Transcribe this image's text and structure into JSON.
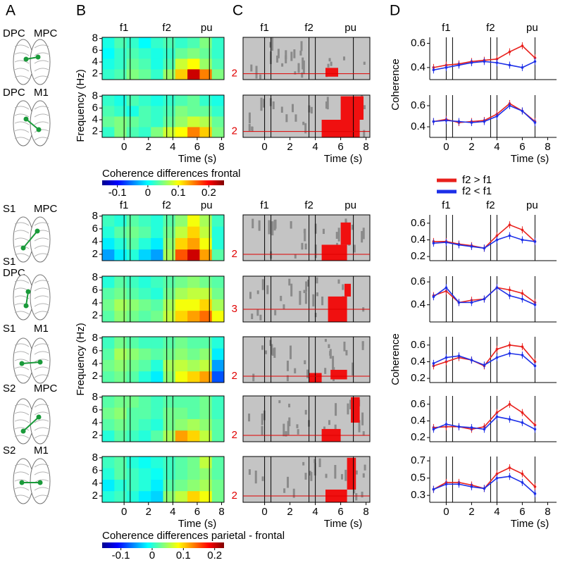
{
  "panel_labels": [
    "A",
    "B",
    "C",
    "D"
  ],
  "event_times": [
    0,
    0.5,
    3.5,
    4,
    7
  ],
  "regions": [
    [
      "DPC",
      "MPC"
    ],
    [
      "DPC",
      "M1"
    ],
    [
      "S1",
      "MPC"
    ],
    [
      "S1",
      "DPC"
    ],
    [
      "S1",
      "M1"
    ],
    [
      "S2",
      "MPC"
    ],
    [
      "S2",
      "M1"
    ]
  ],
  "chart_data": [
    {
      "type": "heatmap",
      "event_labels": [
        "f1",
        "f2",
        "pu"
      ],
      "xlim": [
        -1.8,
        8.2
      ],
      "ylim": [
        1,
        8.2
      ],
      "yticks": [
        2,
        4,
        6,
        8
      ],
      "z": [
        [
          0.02,
          0.03,
          0.05,
          0.04,
          0.02,
          0.06,
          0.12,
          0.22,
          0.15,
          0.05
        ],
        [
          0.01,
          0.02,
          0.04,
          0.03,
          0.01,
          0.03,
          0.08,
          0.1,
          0.06,
          0.03
        ],
        [
          0.0,
          0.02,
          0.03,
          0.02,
          0.01,
          0.02,
          0.04,
          0.05,
          0.04,
          0.02
        ],
        [
          0.01,
          0.03,
          0.02,
          0.0,
          0.02,
          0.03,
          0.02,
          0.03,
          0.05,
          0.02
        ]
      ]
    },
    {
      "type": "heatmap",
      "xlabel": "Time (s)",
      "ylabel": "Frequency (Hz)",
      "xlim": [
        -1.8,
        8.2
      ],
      "xticks": [
        0,
        2,
        4,
        6,
        8
      ],
      "ylim": [
        1,
        8.2
      ],
      "yticks": [
        2,
        4,
        6,
        8
      ],
      "z": [
        [
          0.02,
          0.05,
          0.03,
          0.02,
          0.05,
          0.08,
          0.1,
          0.15,
          0.12,
          0.05
        ],
        [
          0.04,
          0.05,
          0.04,
          0.03,
          0.02,
          0.04,
          0.06,
          0.08,
          0.07,
          0.04
        ],
        [
          0.03,
          0.02,
          0.01,
          0.03,
          0.02,
          0.03,
          0.05,
          0.04,
          0.04,
          0.02
        ],
        [
          0.02,
          0.01,
          0.03,
          0.02,
          0.01,
          0.02,
          0.03,
          0.04,
          0.02,
          0.01
        ]
      ]
    },
    {
      "type": "colorbar",
      "title": "Coherence differences frontal",
      "lim": [
        -0.15,
        0.25
      ],
      "ticks": [
        -0.1,
        0,
        0.1,
        0.2
      ]
    },
    {
      "type": "heatmap",
      "event_labels": [
        "f1",
        "f2",
        "pu"
      ],
      "xlim": [
        -1.8,
        8.2
      ],
      "ylim": [
        1,
        8.2
      ],
      "yticks": [
        2,
        4,
        6,
        8
      ],
      "z": [
        [
          -0.05,
          -0.02,
          0.0,
          -0.03,
          -0.05,
          0.05,
          0.15,
          0.2,
          0.12,
          0.02
        ],
        [
          -0.02,
          0.0,
          0.02,
          0.0,
          -0.02,
          0.04,
          0.1,
          0.12,
          0.08,
          0.0
        ],
        [
          0.0,
          0.02,
          0.03,
          0.02,
          0.0,
          0.03,
          0.06,
          0.1,
          0.06,
          0.0
        ],
        [
          0.01,
          0.0,
          0.02,
          0.01,
          0.0,
          0.02,
          0.04,
          0.08,
          0.05,
          0.01
        ]
      ]
    },
    {
      "type": "heatmap",
      "xlim": [
        -1.8,
        8.2
      ],
      "ylim": [
        1,
        8.2
      ],
      "yticks": [
        2,
        4,
        6,
        8
      ],
      "z": [
        [
          0.02,
          0.04,
          0.03,
          0.02,
          0.03,
          0.06,
          0.1,
          0.12,
          0.14,
          0.08
        ],
        [
          0.03,
          0.05,
          0.04,
          0.03,
          0.02,
          0.05,
          0.08,
          0.08,
          0.1,
          0.05
        ],
        [
          0.02,
          0.03,
          0.02,
          0.01,
          0.0,
          0.03,
          0.05,
          0.06,
          0.06,
          0.03
        ],
        [
          0.0,
          0.02,
          0.01,
          0.0,
          0.01,
          0.02,
          0.03,
          0.04,
          0.03,
          0.02
        ]
      ]
    },
    {
      "type": "heatmap",
      "ylabel": "Frequency (Hz)",
      "xlim": [
        -1.8,
        8.2
      ],
      "ylim": [
        1,
        8.2
      ],
      "yticks": [
        2,
        4,
        6,
        8
      ],
      "z": [
        [
          0.02,
          0.03,
          0.02,
          0.0,
          -0.02,
          0.04,
          0.08,
          0.1,
          0.12,
          -0.08
        ],
        [
          0.03,
          0.04,
          0.03,
          0.02,
          0.0,
          0.05,
          0.06,
          0.05,
          0.06,
          -0.05
        ],
        [
          0.02,
          0.05,
          0.04,
          0.03,
          0.02,
          0.03,
          0.04,
          0.03,
          0.04,
          -0.02
        ],
        [
          0.01,
          0.03,
          0.02,
          0.01,
          0.01,
          0.02,
          0.03,
          0.02,
          0.02,
          0.0
        ]
      ]
    },
    {
      "type": "heatmap",
      "xlim": [
        -1.8,
        8.2
      ],
      "ylim": [
        1,
        8.2
      ],
      "yticks": [
        2,
        4,
        6,
        8
      ],
      "z": [
        [
          0.0,
          0.02,
          0.01,
          0.0,
          0.02,
          0.05,
          0.12,
          0.1,
          0.06,
          0.02
        ],
        [
          0.02,
          0.03,
          0.02,
          0.01,
          0.0,
          0.03,
          0.04,
          0.05,
          0.04,
          0.02
        ],
        [
          0.03,
          0.04,
          0.02,
          0.02,
          0.01,
          0.03,
          0.03,
          0.02,
          0.03,
          0.01
        ],
        [
          0.02,
          0.03,
          0.03,
          0.02,
          0.01,
          0.02,
          0.02,
          0.02,
          0.03,
          0.01
        ]
      ]
    },
    {
      "type": "heatmap",
      "xlabel": "Time (s)",
      "xlim": [
        -1.8,
        8.2
      ],
      "xticks": [
        0,
        2,
        4,
        6,
        8
      ],
      "ylim": [
        1,
        8.2
      ],
      "yticks": [
        2,
        4,
        6,
        8
      ],
      "z": [
        [
          0.0,
          0.01,
          0.0,
          -0.02,
          -0.03,
          0.04,
          0.06,
          0.1,
          0.08,
          0.03
        ],
        [
          -0.02,
          0.0,
          0.01,
          0.0,
          -0.02,
          0.02,
          0.03,
          0.04,
          0.05,
          0.03
        ],
        [
          0.0,
          0.02,
          0.01,
          0.0,
          -0.01,
          0.01,
          0.02,
          0.03,
          0.04,
          0.02
        ],
        [
          0.01,
          0.02,
          0.0,
          -0.01,
          0.0,
          0.01,
          0.02,
          0.03,
          0.06,
          0.02
        ]
      ]
    },
    {
      "type": "colorbar",
      "title": "Coherence differences parietal - frontal",
      "lim": [
        -0.16,
        0.23
      ],
      "ticks": [
        -0.1,
        0,
        0.1,
        0.2
      ]
    },
    {
      "type": "raster",
      "event_labels": [
        "f1",
        "f2",
        "pu"
      ],
      "xlim": [
        -1.7,
        8.3
      ],
      "ylim": [
        1,
        8.2
      ],
      "threshold": 2,
      "regions": [
        [
          4.8,
          5.8,
          1.5,
          3
        ]
      ]
    },
    {
      "type": "raster",
      "xlabel": "Time (s)",
      "xlim": [
        -1.7,
        8.3
      ],
      "xticks": [
        0,
        2,
        4,
        6,
        8
      ],
      "ylim": [
        1,
        8.2
      ],
      "threshold": 2,
      "regions": [
        [
          4.5,
          7.5,
          1,
          4
        ],
        [
          6,
          7.8,
          4,
          8
        ]
      ]
    },
    {
      "type": "raster",
      "event_labels": [
        "f1",
        "f2",
        "pu"
      ],
      "xlim": [
        -1.7,
        8.3
      ],
      "ylim": [
        1,
        8.2
      ],
      "threshold": 2,
      "regions": [
        [
          4.5,
          6.5,
          1,
          3.5
        ],
        [
          6,
          6.8,
          3.5,
          7
        ]
      ]
    },
    {
      "type": "raster",
      "xlim": [
        -1.7,
        8.3
      ],
      "ylim": [
        1,
        8.2
      ],
      "threshold": 3,
      "regions": [
        [
          5,
          6.5,
          1,
          5
        ],
        [
          6.3,
          6.8,
          5,
          7
        ]
      ]
    },
    {
      "type": "raster",
      "xlim": [
        -1.7,
        8.3
      ],
      "ylim": [
        1,
        8.2
      ],
      "threshold": 2,
      "regions": [
        [
          3.5,
          4.5,
          1,
          2.5
        ],
        [
          5.2,
          6.5,
          1.5,
          3
        ]
      ]
    },
    {
      "type": "raster",
      "xlim": [
        -1.7,
        8.3
      ],
      "ylim": [
        1,
        8.2
      ],
      "threshold": 2,
      "regions": [
        [
          4.5,
          6,
          1,
          3
        ],
        [
          6.8,
          7.5,
          4,
          8
        ]
      ]
    },
    {
      "type": "raster",
      "xlabel": "Time (s)",
      "xlim": [
        -1.7,
        8.3
      ],
      "xticks": [
        0,
        2,
        4,
        6,
        8
      ],
      "ylim": [
        1,
        8.2
      ],
      "threshold": 2,
      "regions": [
        [
          4.8,
          6.5,
          1,
          3
        ],
        [
          6.5,
          7.2,
          3,
          8
        ]
      ]
    },
    {
      "type": "line",
      "event_labels": [
        "f1",
        "f2",
        "pu"
      ],
      "xlim": [
        -1.3,
        8.7
      ],
      "ylim": [
        0.3,
        0.65
      ],
      "yticks": [
        0.4,
        0.6
      ],
      "x": [
        -1,
        0,
        1,
        2,
        3,
        4,
        5,
        6,
        7
      ],
      "series": [
        {
          "color": "#e8201c",
          "values": [
            0.4,
            0.42,
            0.43,
            0.45,
            0.46,
            0.47,
            0.53,
            0.58,
            0.48
          ]
        },
        {
          "color": "#1c2fe8",
          "values": [
            0.38,
            0.4,
            0.42,
            0.44,
            0.45,
            0.44,
            0.42,
            0.4,
            0.45
          ]
        }
      ]
    },
    {
      "type": "line",
      "xlabel": "Time (s)",
      "ylabel": "Coherence",
      "xlim": [
        -1.3,
        8.7
      ],
      "xticks": [
        0,
        2,
        4,
        6,
        8
      ],
      "ylim": [
        0.3,
        0.7
      ],
      "yticks": [
        0.4,
        0.6
      ],
      "x": [
        -1,
        0,
        1,
        2,
        3,
        4,
        5,
        6,
        7
      ],
      "series": [
        {
          "name": "f2 > f1",
          "color": "#e8201c",
          "values": [
            0.45,
            0.47,
            0.44,
            0.45,
            0.46,
            0.52,
            0.62,
            0.55,
            0.45
          ]
        },
        {
          "name": "f2 < f1",
          "color": "#1c2fe8",
          "values": [
            0.45,
            0.46,
            0.45,
            0.44,
            0.45,
            0.5,
            0.6,
            0.55,
            0.44
          ]
        }
      ]
    },
    {
      "type": "line",
      "event_labels": [
        "f1",
        "f2",
        "pu"
      ],
      "xlim": [
        -1.3,
        8.7
      ],
      "ylim": [
        0.15,
        0.7
      ],
      "yticks": [
        0.2,
        0.4,
        0.6
      ],
      "x": [
        -1,
        0,
        1,
        2,
        3,
        4,
        5,
        6,
        7
      ],
      "series": [
        {
          "color": "#e8201c",
          "values": [
            0.38,
            0.38,
            0.35,
            0.33,
            0.3,
            0.45,
            0.58,
            0.52,
            0.38
          ]
        },
        {
          "color": "#1c2fe8",
          "values": [
            0.36,
            0.37,
            0.34,
            0.32,
            0.3,
            0.4,
            0.45,
            0.4,
            0.38
          ]
        }
      ]
    },
    {
      "type": "line",
      "xlim": [
        -1.3,
        8.7
      ],
      "ylim": [
        0.25,
        0.65
      ],
      "yticks": [
        0.4,
        0.6
      ],
      "x": [
        -1,
        0,
        1,
        2,
        3,
        4,
        5,
        6,
        7
      ],
      "series": [
        {
          "color": "#e8201c",
          "values": [
            0.48,
            0.52,
            0.42,
            0.44,
            0.45,
            0.55,
            0.53,
            0.5,
            0.42
          ]
        },
        {
          "color": "#1c2fe8",
          "values": [
            0.47,
            0.55,
            0.42,
            0.42,
            0.45,
            0.55,
            0.48,
            0.45,
            0.4
          ]
        }
      ]
    },
    {
      "type": "line",
      "ylabel": "Coherence",
      "xlim": [
        -1.3,
        8.7
      ],
      "ylim": [
        0.15,
        0.7
      ],
      "yticks": [
        0.2,
        0.4,
        0.6
      ],
      "x": [
        -1,
        0,
        1,
        2,
        3,
        4,
        5,
        6,
        7
      ],
      "series": [
        {
          "color": "#e8201c",
          "values": [
            0.35,
            0.4,
            0.45,
            0.42,
            0.35,
            0.55,
            0.6,
            0.58,
            0.4
          ]
        },
        {
          "color": "#1c2fe8",
          "values": [
            0.38,
            0.45,
            0.47,
            0.42,
            0.36,
            0.45,
            0.5,
            0.48,
            0.35
          ]
        }
      ]
    },
    {
      "type": "line",
      "xlim": [
        -1.3,
        8.7
      ],
      "ylim": [
        0.15,
        0.7
      ],
      "yticks": [
        0.2,
        0.4,
        0.6
      ],
      "x": [
        -1,
        0,
        1,
        2,
        3,
        4,
        5,
        6,
        7
      ],
      "series": [
        {
          "color": "#e8201c",
          "values": [
            0.32,
            0.33,
            0.33,
            0.3,
            0.33,
            0.5,
            0.6,
            0.5,
            0.35
          ]
        },
        {
          "color": "#1c2fe8",
          "values": [
            0.3,
            0.36,
            0.33,
            0.32,
            0.3,
            0.45,
            0.42,
            0.38,
            0.3
          ]
        }
      ]
    },
    {
      "type": "line",
      "xlabel": "Time (s)",
      "xlim": [
        -1.3,
        8.7
      ],
      "xticks": [
        0,
        2,
        4,
        6,
        8
      ],
      "ylim": [
        0.22,
        0.75
      ],
      "yticks": [
        0.3,
        0.5,
        0.7
      ],
      "x": [
        -1,
        0,
        1,
        2,
        3,
        4,
        5,
        6,
        7
      ],
      "series": [
        {
          "color": "#e8201c",
          "values": [
            0.37,
            0.45,
            0.45,
            0.42,
            0.38,
            0.55,
            0.62,
            0.55,
            0.4
          ]
        },
        {
          "color": "#1c2fe8",
          "values": [
            0.37,
            0.43,
            0.43,
            0.4,
            0.38,
            0.5,
            0.52,
            0.45,
            0.32
          ]
        }
      ]
    }
  ]
}
